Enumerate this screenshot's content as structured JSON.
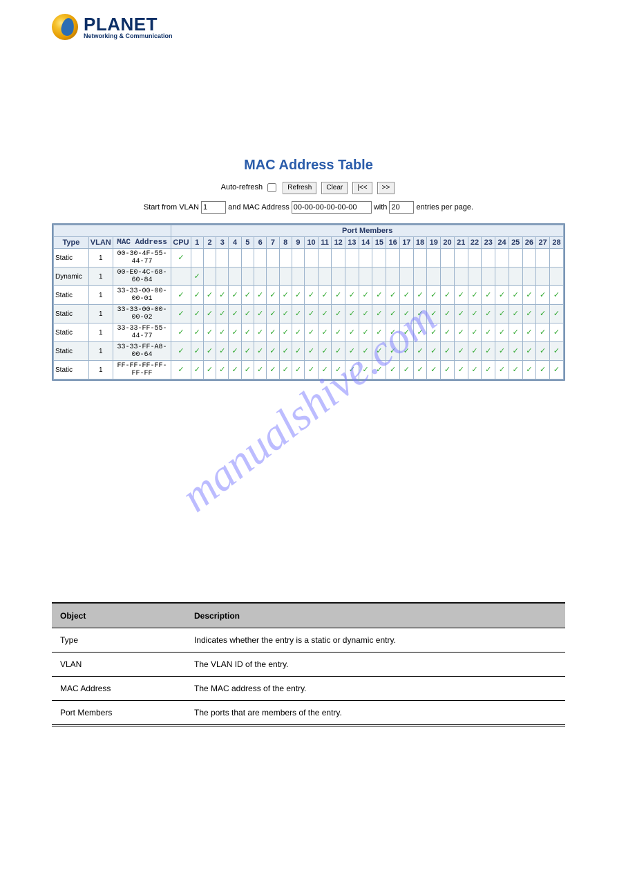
{
  "logo": {
    "brand": "PLANET",
    "tagline": "Networking & Communication"
  },
  "title": "MAC Address Table",
  "controls": {
    "auto_refresh_label": "Auto-refresh",
    "auto_refresh_checked": false,
    "buttons": {
      "refresh": "Refresh",
      "clear": "Clear",
      "first": "|<<",
      "next": ">>"
    }
  },
  "filters": {
    "prefix": "Start from VLAN",
    "vlan_value": "1",
    "mid": "and MAC Address",
    "mac_value": "00-00-00-00-00-00",
    "with": "with",
    "count_value": "20",
    "suffix": "entries per page."
  },
  "table": {
    "row1_blank": "",
    "row1_group": "Port Members",
    "headers": {
      "type": "Type",
      "vlan": "VLAN",
      "mac": "MAC Address",
      "cpu": "CPU"
    },
    "port_count": 28,
    "check_color": "#2ea82e",
    "header_bg": "#e4ecf5",
    "border_color": "#9db4cc",
    "rows": [
      {
        "type": "Static",
        "vlan": "1",
        "mac": "00-30-4F-55-44-77",
        "ports": "cpu"
      },
      {
        "type": "Dynamic",
        "vlan": "1",
        "mac": "00-E0-4C-68-60-84",
        "ports": "p1"
      },
      {
        "type": "Static",
        "vlan": "1",
        "mac": "33-33-00-00-00-01",
        "ports": "all"
      },
      {
        "type": "Static",
        "vlan": "1",
        "mac": "33-33-00-00-00-02",
        "ports": "all"
      },
      {
        "type": "Static",
        "vlan": "1",
        "mac": "33-33-FF-55-44-77",
        "ports": "all"
      },
      {
        "type": "Static",
        "vlan": "1",
        "mac": "33-33-FF-A8-00-64",
        "ports": "all"
      },
      {
        "type": "Static",
        "vlan": "1",
        "mac": "FF-FF-FF-FF-FF-FF",
        "ports": "all"
      }
    ]
  },
  "legend": {
    "headers": {
      "object": "Object",
      "description": "Description"
    },
    "rows": [
      {
        "object": "Type",
        "description": "Indicates whether the entry is a static or dynamic entry."
      },
      {
        "object": "VLAN",
        "description": "The VLAN ID of the entry."
      },
      {
        "object": "MAC Address",
        "description": "The MAC address of the entry."
      },
      {
        "object": "Port Members",
        "description": "The ports that are members of the entry."
      }
    ]
  },
  "watermark": "manualshive.com"
}
